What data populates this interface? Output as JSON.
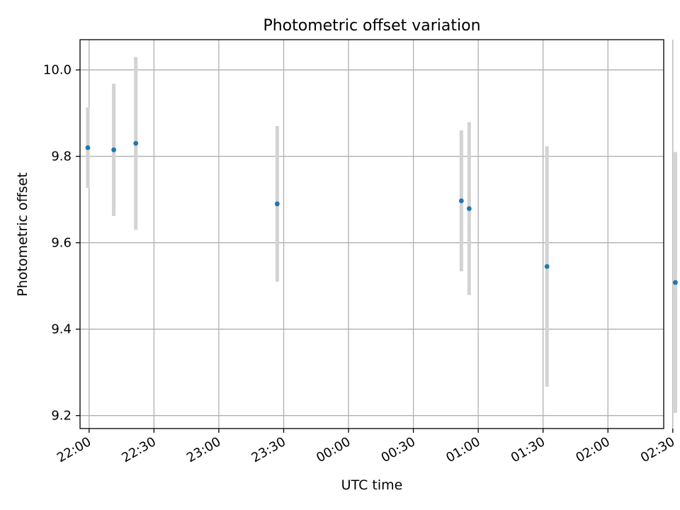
{
  "chart_data": {
    "type": "scatter",
    "title": "Photometric offset variation",
    "xlabel": "UTC time",
    "ylabel": "Photometric offset",
    "grid": true,
    "x_ticks": [
      "22:00",
      "22:30",
      "23:00",
      "23:30",
      "00:00",
      "00:30",
      "01:00",
      "01:30",
      "02:00",
      "02:30"
    ],
    "y_ticks": [
      "9.2",
      "9.4",
      "9.6",
      "9.8",
      "10.0"
    ],
    "ylim": [
      9.17,
      10.07
    ],
    "xlim_hours": [
      21.93,
      26.43
    ],
    "series": [
      {
        "x": [
          "21:59",
          "22:12",
          "22:21",
          "23:28",
          "00:51",
          "00:55",
          "01:32",
          "02:31"
        ],
        "x_hours": [
          21.99,
          22.19,
          22.36,
          23.45,
          24.87,
          24.93,
          25.53,
          26.52
        ],
        "y": [
          9.82,
          9.815,
          9.83,
          9.69,
          9.697,
          9.679,
          9.545,
          9.508
        ],
        "yerr": [
          0.093,
          0.153,
          0.2,
          0.18,
          0.163,
          0.2,
          0.278,
          0.302
        ],
        "color": "#1f77b4",
        "errorbar_color": "#d3d3d3"
      }
    ],
    "grid_color": "#b0b0b0",
    "axes_color": "#000000"
  }
}
